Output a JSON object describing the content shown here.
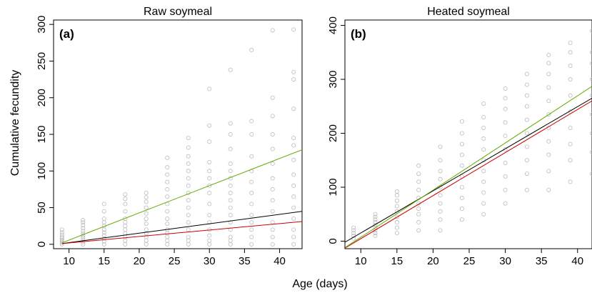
{
  "figure": {
    "ylabel": "Cumulative fecundity",
    "xlabel": "Age (days)"
  },
  "chart_data": [
    {
      "type": "scatter",
      "title": "Raw soymeal",
      "panel_label": "(a)",
      "xlim": [
        7.8,
        43.2
      ],
      "ylim": [
        -6,
        306
      ],
      "xticks": [
        10,
        15,
        20,
        25,
        30,
        35,
        40
      ],
      "yticks": [
        0,
        50,
        100,
        150,
        200,
        250,
        300
      ],
      "grid": false,
      "point_color": "#bbbbbb",
      "x": [
        9,
        12,
        15,
        18,
        21,
        24,
        27,
        30,
        33,
        36,
        39,
        42
      ],
      "points_per_day": [
        [
          0,
          2,
          4,
          6,
          8,
          10,
          13,
          16,
          20
        ],
        [
          0,
          3,
          6,
          9,
          12,
          15,
          18,
          22,
          26,
          30,
          33
        ],
        [
          0,
          4,
          8,
          12,
          16,
          20,
          25,
          30,
          35,
          45,
          55
        ],
        [
          0,
          5,
          10,
          15,
          20,
          25,
          30,
          35,
          45,
          55,
          62,
          68
        ],
        [
          0,
          5,
          10,
          15,
          20,
          28,
          35,
          42,
          50,
          58,
          64,
          70
        ],
        [
          0,
          5,
          10,
          15,
          20,
          28,
          35,
          45,
          55,
          65,
          75,
          85,
          95,
          105,
          118
        ],
        [
          0,
          5,
          10,
          20,
          30,
          40,
          50,
          60,
          70,
          80,
          90,
          100,
          110,
          120,
          132,
          145
        ],
        [
          0,
          5,
          12,
          20,
          30,
          40,
          55,
          70,
          80,
          90,
          100,
          112,
          140,
          162,
          212
        ],
        [
          0,
          5,
          10,
          20,
          30,
          40,
          50,
          60,
          70,
          80,
          90,
          100,
          110,
          130,
          150,
          165,
          238
        ],
        [
          0,
          10,
          20,
          30,
          40,
          55,
          70,
          85,
          100,
          120,
          150,
          168,
          265
        ],
        [
          0,
          10,
          20,
          30,
          45,
          60,
          75,
          90,
          110,
          130,
          150,
          175,
          200,
          292
        ],
        [
          0,
          10,
          20,
          35,
          50,
          65,
          80,
          95,
          115,
          135,
          145,
          185,
          225,
          235,
          293
        ]
      ],
      "series": [
        {
          "color": "#000000",
          "x": [
            9,
            43.2
          ],
          "y": [
            1,
            45
          ]
        },
        {
          "color": "#cc0000",
          "x": [
            9,
            43.2
          ],
          "y": [
            1,
            31
          ]
        },
        {
          "color": "#66aa00",
          "x": [
            9,
            43.2
          ],
          "y": [
            2,
            129
          ]
        }
      ]
    },
    {
      "type": "scatter",
      "title": "Heated soymeal",
      "panel_label": "(b)",
      "xlim": [
        7.8,
        42
      ],
      "ylim": [
        -14,
        410
      ],
      "xticks": [
        10,
        15,
        20,
        25,
        30,
        35,
        40
      ],
      "yticks": [
        0,
        100,
        200,
        300,
        400
      ],
      "grid": false,
      "point_color": "#bbbbbb",
      "x": [
        9,
        12,
        15,
        18,
        21,
        24,
        27,
        30,
        33,
        36,
        39,
        42
      ],
      "points_per_day": [
        [
          5,
          10,
          15,
          20,
          25
        ],
        [
          10,
          15,
          20,
          25,
          30,
          35,
          40,
          45,
          50
        ],
        [
          15,
          25,
          35,
          45,
          55,
          65,
          75,
          85,
          92
        ],
        [
          20,
          35,
          50,
          60,
          70,
          80,
          95,
          110,
          125,
          140
        ],
        [
          20,
          40,
          55,
          70,
          85,
          100,
          115,
          130,
          150,
          175
        ],
        [
          40,
          60,
          80,
          100,
          120,
          140,
          160,
          180,
          200,
          222
        ],
        [
          50,
          70,
          90,
          110,
          130,
          150,
          170,
          190,
          210,
          230,
          255
        ],
        [
          70,
          95,
          120,
          145,
          170,
          195,
          220,
          245,
          265,
          283
        ],
        [
          95,
          125,
          150,
          175,
          200,
          225,
          250,
          270,
          290,
          310
        ],
        [
          95,
          130,
          160,
          185,
          210,
          235,
          260,
          285,
          310,
          330,
          345
        ],
        [
          110,
          150,
          180,
          210,
          240,
          270,
          300,
          325,
          350,
          368
        ],
        [
          125,
          165,
          200,
          235,
          270,
          300,
          330,
          350,
          390
        ]
      ],
      "series": [
        {
          "color": "#000000",
          "x": [
            7.8,
            42
          ],
          "y": [
            -2,
            265
          ]
        },
        {
          "color": "#cc0000",
          "x": [
            7.8,
            42
          ],
          "y": [
            -13,
            260
          ]
        },
        {
          "color": "#66aa00",
          "x": [
            7.8,
            42
          ],
          "y": [
            -12,
            287
          ]
        }
      ]
    }
  ]
}
